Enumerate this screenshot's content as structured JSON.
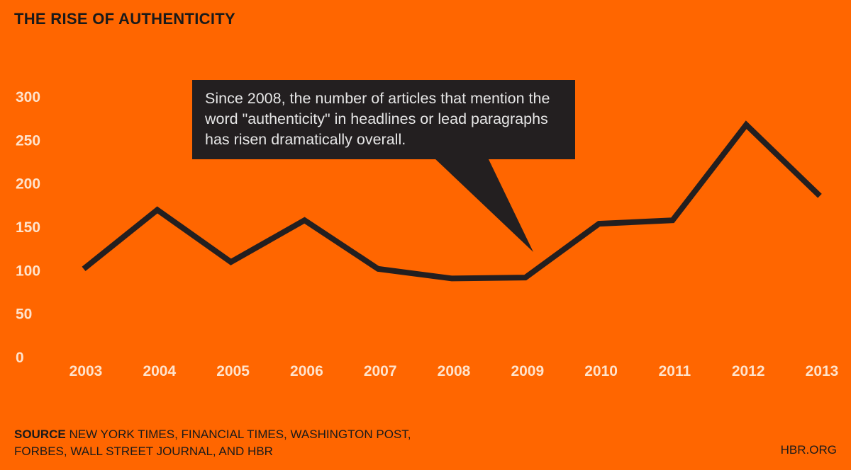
{
  "title": "THE RISE OF AUTHENTICITY",
  "annotation": "Since 2008, the number of articles that mention the word \"authenticity\" in headlines or lead paragraphs has risen dramatically overall.",
  "source_label": "SOURCE",
  "source_text": "NEW YORK TIMES, FINANCIAL TIMES, WASHINGTON POST, FORBES, WALL STREET JOURNAL, AND HBR",
  "credit": "HBR.ORG",
  "colors": {
    "background": "#FF6600",
    "line": "#231F20",
    "tick_text": "#FFE3CC",
    "callout_bg": "#231F20"
  },
  "chart_data": {
    "type": "line",
    "title": "THE RISE OF AUTHENTICITY",
    "xlabel": "",
    "ylabel": "",
    "x": [
      "2003",
      "2004",
      "2005",
      "2006",
      "2007",
      "2008",
      "2009",
      "2010",
      "2011",
      "2012",
      "2013"
    ],
    "series": [
      {
        "values": [
          102,
          170,
          110,
          158,
          102,
          91,
          92,
          154,
          158,
          268,
          186
        ]
      }
    ],
    "ylim": [
      0,
      300
    ],
    "yticks": [
      0,
      50,
      100,
      150,
      200,
      250,
      300
    ],
    "grid": false,
    "legend": "none"
  }
}
